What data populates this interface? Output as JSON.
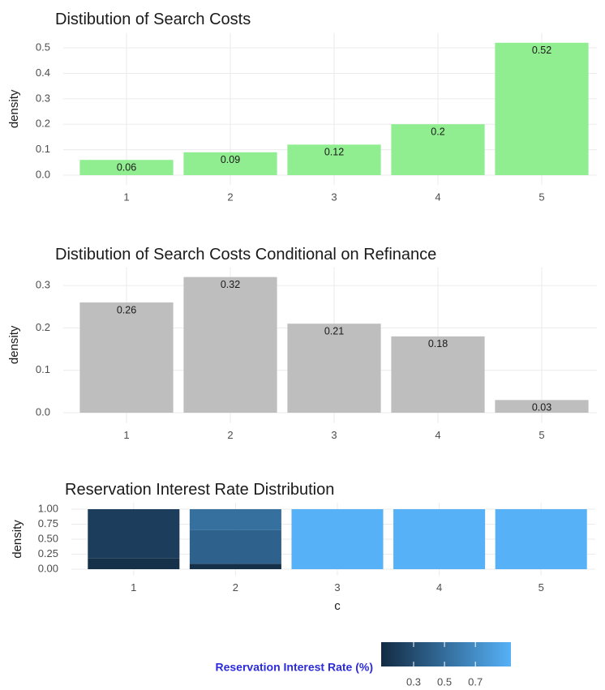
{
  "chart_data": [
    {
      "type": "bar",
      "title": "Distibution of Search Costs",
      "y_label": "density",
      "categories": [
        "1",
        "2",
        "3",
        "4",
        "5"
      ],
      "values": [
        0.06,
        0.09,
        0.12,
        0.2,
        0.52
      ],
      "color": "#90ee90",
      "ylim": [
        -0.026,
        0.546
      ],
      "yticks": [
        {
          "value": 0,
          "label": "0.0"
        },
        0.1,
        0.2,
        0.3,
        0.4,
        0.5
      ],
      "grid": true
    },
    {
      "type": "bar",
      "title": "Distibution of Search Costs Conditional on Refinance",
      "y_label": "density",
      "categories": [
        "1",
        "2",
        "3",
        "4",
        "5"
      ],
      "values": [
        0.26,
        0.32,
        0.21,
        0.18,
        0.03
      ],
      "color": "#bebebe",
      "ylim": [
        -0.016,
        0.336
      ],
      "yticks": [
        {
          "value": 0,
          "label": "0.0"
        },
        0.1,
        0.2,
        0.3
      ],
      "grid": true
    },
    {
      "type": "stacked_fill",
      "title": "Reservation Interest Rate Distribution",
      "y_label": "density",
      "x_label": "c",
      "categories": [
        "1",
        "2",
        "3",
        "4",
        "5"
      ],
      "stacks": [
        [
          {
            "value": 0.18,
            "rate": 0.12
          },
          {
            "value": 0.82,
            "rate": 0.2
          }
        ],
        [
          {
            "value": 0.09,
            "rate": 0.12
          },
          {
            "value": 0.56,
            "rate": 0.43
          },
          {
            "value": 0.35,
            "rate": 0.52
          }
        ],
        [
          {
            "value": 1,
            "rate": 0.93
          }
        ],
        [
          {
            "value": 1,
            "rate": 0.93
          }
        ],
        [
          {
            "value": 1,
            "rate": 0.93
          }
        ]
      ],
      "ylim": [
        -0.05,
        1.05
      ],
      "yticks": [
        {
          "value": 0,
          "label": "0.00"
        },
        {
          "value": 0.25,
          "label": "0.25"
        },
        {
          "value": 0.5,
          "label": "0.50"
        },
        {
          "value": 0.75,
          "label": "0.75"
        },
        {
          "value": 1,
          "label": "1.00"
        }
      ],
      "grid": true,
      "fill_scale": {
        "title": "Reservation Interest Rate (%)",
        "low": "#132B43",
        "high": "#56B1F7",
        "lim": [
          0.09,
          0.93
        ],
        "ticks": [
          0.3,
          0.5,
          0.7
        ]
      }
    }
  ]
}
